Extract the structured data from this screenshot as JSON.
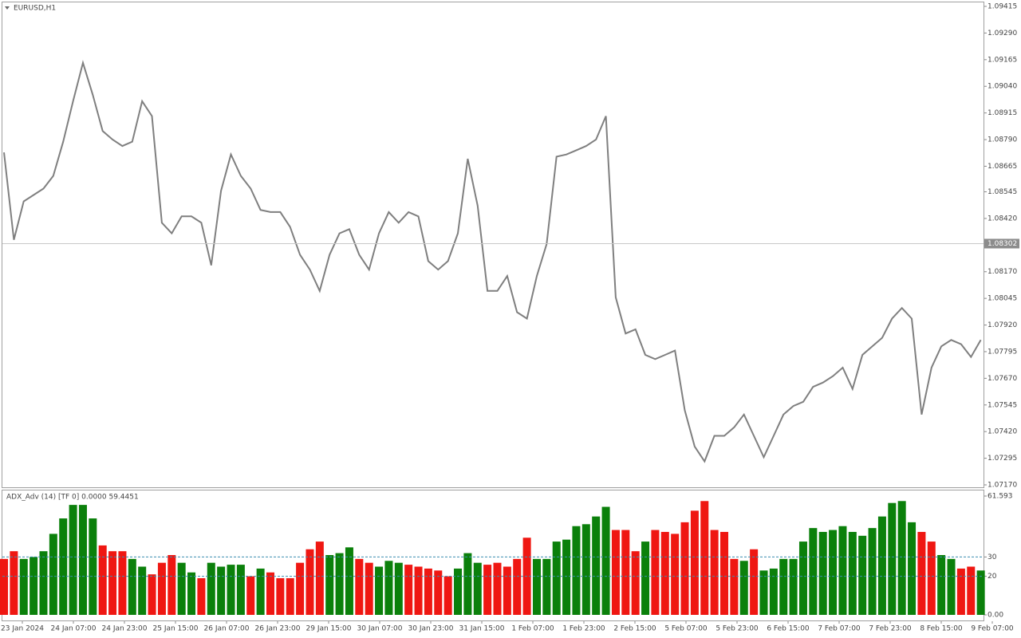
{
  "chart_data": [
    {
      "type": "line",
      "title": "EURUSD,H1",
      "color": "#7f7f7f",
      "values": [
        1.0873,
        1.0832,
        1.085,
        1.0853,
        1.0856,
        1.0862,
        1.0878,
        1.0897,
        1.0915,
        1.09,
        1.0883,
        1.0879,
        1.0876,
        1.0878,
        1.0897,
        1.089,
        1.084,
        1.0835,
        1.0843,
        1.0843,
        1.084,
        1.082,
        1.0855,
        1.0872,
        1.0862,
        1.0856,
        1.0846,
        1.0845,
        1.0845,
        1.0838,
        1.0825,
        1.0818,
        1.0808,
        1.0825,
        1.0835,
        1.0837,
        1.0825,
        1.0818,
        1.0835,
        1.0845,
        1.084,
        1.0845,
        1.0843,
        1.0822,
        1.0818,
        1.0822,
        1.0835,
        1.087,
        1.0848,
        1.0808,
        1.0808,
        1.0815,
        1.0798,
        1.0795,
        1.0815,
        1.083,
        1.0871,
        1.0872,
        1.0874,
        1.0876,
        1.0879,
        1.089,
        1.0805,
        1.0788,
        1.079,
        1.0778,
        1.0776,
        1.0778,
        1.078,
        1.0752,
        1.0735,
        1.0728,
        1.074,
        1.074,
        1.0744,
        1.075,
        1.074,
        1.073,
        1.074,
        1.075,
        1.0754,
        1.0756,
        1.0763,
        1.0765,
        1.0768,
        1.0772,
        1.0762,
        1.0778,
        1.0782,
        1.0786,
        1.0795,
        1.08,
        1.0795,
        1.075,
        1.0772,
        1.0782,
        1.0785,
        1.0783,
        1.0777,
        1.0785
      ],
      "ylim": [
        1.0717,
        1.09415
      ],
      "yticks": [
        1.09415,
        {
          "value": 1.0929,
          "label": "1.09290"
        },
        1.09165,
        {
          "value": 1.0904,
          "label": "1.09040"
        },
        1.08915,
        {
          "value": 1.0879,
          "label": "1.08790"
        },
        1.08665,
        1.08545,
        {
          "value": 1.0842,
          "label": "1.08420"
        },
        {
          "value": 1.0817,
          "label": "1.08170"
        },
        1.08045,
        {
          "value": 1.0792,
          "label": "1.07920"
        },
        1.07795,
        {
          "value": 1.0767,
          "label": "1.07670"
        },
        1.07545,
        {
          "value": 1.0742,
          "label": "1.07420"
        },
        1.07295,
        {
          "value": 1.0717,
          "label": "1.07170"
        }
      ],
      "current_price": 1.08302,
      "x_labels": [
        "23 Jan 2024",
        "24 Jan 07:00",
        "24 Jan 23:00",
        "25 Jan 15:00",
        "26 Jan 07:00",
        "26 Jan 23:00",
        "29 Jan 15:00",
        "30 Jan 07:00",
        "30 Jan 23:00",
        "31 Jan 15:00",
        "1 Feb 07:00",
        "1 Feb 23:00",
        "2 Feb 15:00",
        "5 Feb 07:00",
        "5 Feb 23:00",
        "6 Feb 15:00",
        "7 Feb 07:00",
        "7 Feb 23:00",
        "8 Feb 15:00",
        "9 Feb 07:00"
      ]
    },
    {
      "type": "bar",
      "title": "ADX_Adv (14) [TF 0] 0.0000 59.4451",
      "values": [
        29,
        33,
        29,
        30,
        33,
        42,
        50,
        57,
        57,
        50,
        36,
        33,
        33,
        29,
        25,
        21,
        27,
        31,
        27,
        22,
        19,
        27,
        25,
        26,
        26,
        20,
        24,
        22,
        19,
        19,
        27,
        34,
        38,
        31,
        32,
        35,
        29,
        27,
        25,
        28,
        27,
        26,
        25,
        24,
        23,
        20,
        24,
        32,
        27,
        26,
        27,
        25,
        29,
        40,
        29,
        29,
        38,
        39,
        46,
        47,
        51,
        56,
        44,
        44,
        33,
        38,
        44,
        43,
        42,
        48,
        54,
        59,
        44,
        43,
        29,
        28,
        34,
        23,
        24,
        29,
        29,
        38,
        45,
        43,
        44,
        46,
        43,
        41,
        45,
        51,
        58,
        59,
        48,
        43,
        38,
        31,
        29,
        24,
        25,
        23
      ],
      "colors": [
        "#ef1712",
        "#ef1712",
        "#0b800b",
        "#0b800b",
        "#0b800b",
        "#0b800b",
        "#0b800b",
        "#0b800b",
        "#0b800b",
        "#0b800b",
        "#ef1712",
        "#ef1712",
        "#ef1712",
        "#0b800b",
        "#0b800b",
        "#ef1712",
        "#ef1712",
        "#ef1712",
        "#0b800b",
        "#0b800b",
        "#ef1712",
        "#0b800b",
        "#0b800b",
        "#0b800b",
        "#0b800b",
        "#ef1712",
        "#0b800b",
        "#ef1712",
        "#ef1712",
        "#ef1712",
        "#ef1712",
        "#ef1712",
        "#ef1712",
        "#0b800b",
        "#0b800b",
        "#0b800b",
        "#ef1712",
        "#ef1712",
        "#0b800b",
        "#0b800b",
        "#0b800b",
        "#ef1712",
        "#ef1712",
        "#ef1712",
        "#ef1712",
        "#ef1712",
        "#0b800b",
        "#0b800b",
        "#0b800b",
        "#ef1712",
        "#ef1712",
        "#ef1712",
        "#ef1712",
        "#ef1712",
        "#0b800b",
        "#0b800b",
        "#0b800b",
        "#0b800b",
        "#0b800b",
        "#0b800b",
        "#0b800b",
        "#0b800b",
        "#ef1712",
        "#ef1712",
        "#ef1712",
        "#0b800b",
        "#ef1712",
        "#ef1712",
        "#ef1712",
        "#ef1712",
        "#ef1712",
        "#ef1712",
        "#ef1712",
        "#ef1712",
        "#ef1712",
        "#0b800b",
        "#ef1712",
        "#0b800b",
        "#0b800b",
        "#0b800b",
        "#0b800b",
        "#0b800b",
        "#0b800b",
        "#0b800b",
        "#0b800b",
        "#0b800b",
        "#0b800b",
        "#0b800b",
        "#0b800b",
        "#0b800b",
        "#0b800b",
        "#0b800b",
        "#0b800b",
        "#ef1712",
        "#ef1712",
        "#0b800b",
        "#0b800b",
        "#ef1712",
        "#ef1712",
        "#0b800b"
      ],
      "ylim": [
        0,
        61.593
      ],
      "yticks": [
        {
          "value": 0,
          "label": "0.00"
        },
        20,
        30,
        61.593
      ],
      "levels": [
        20,
        30
      ]
    }
  ]
}
